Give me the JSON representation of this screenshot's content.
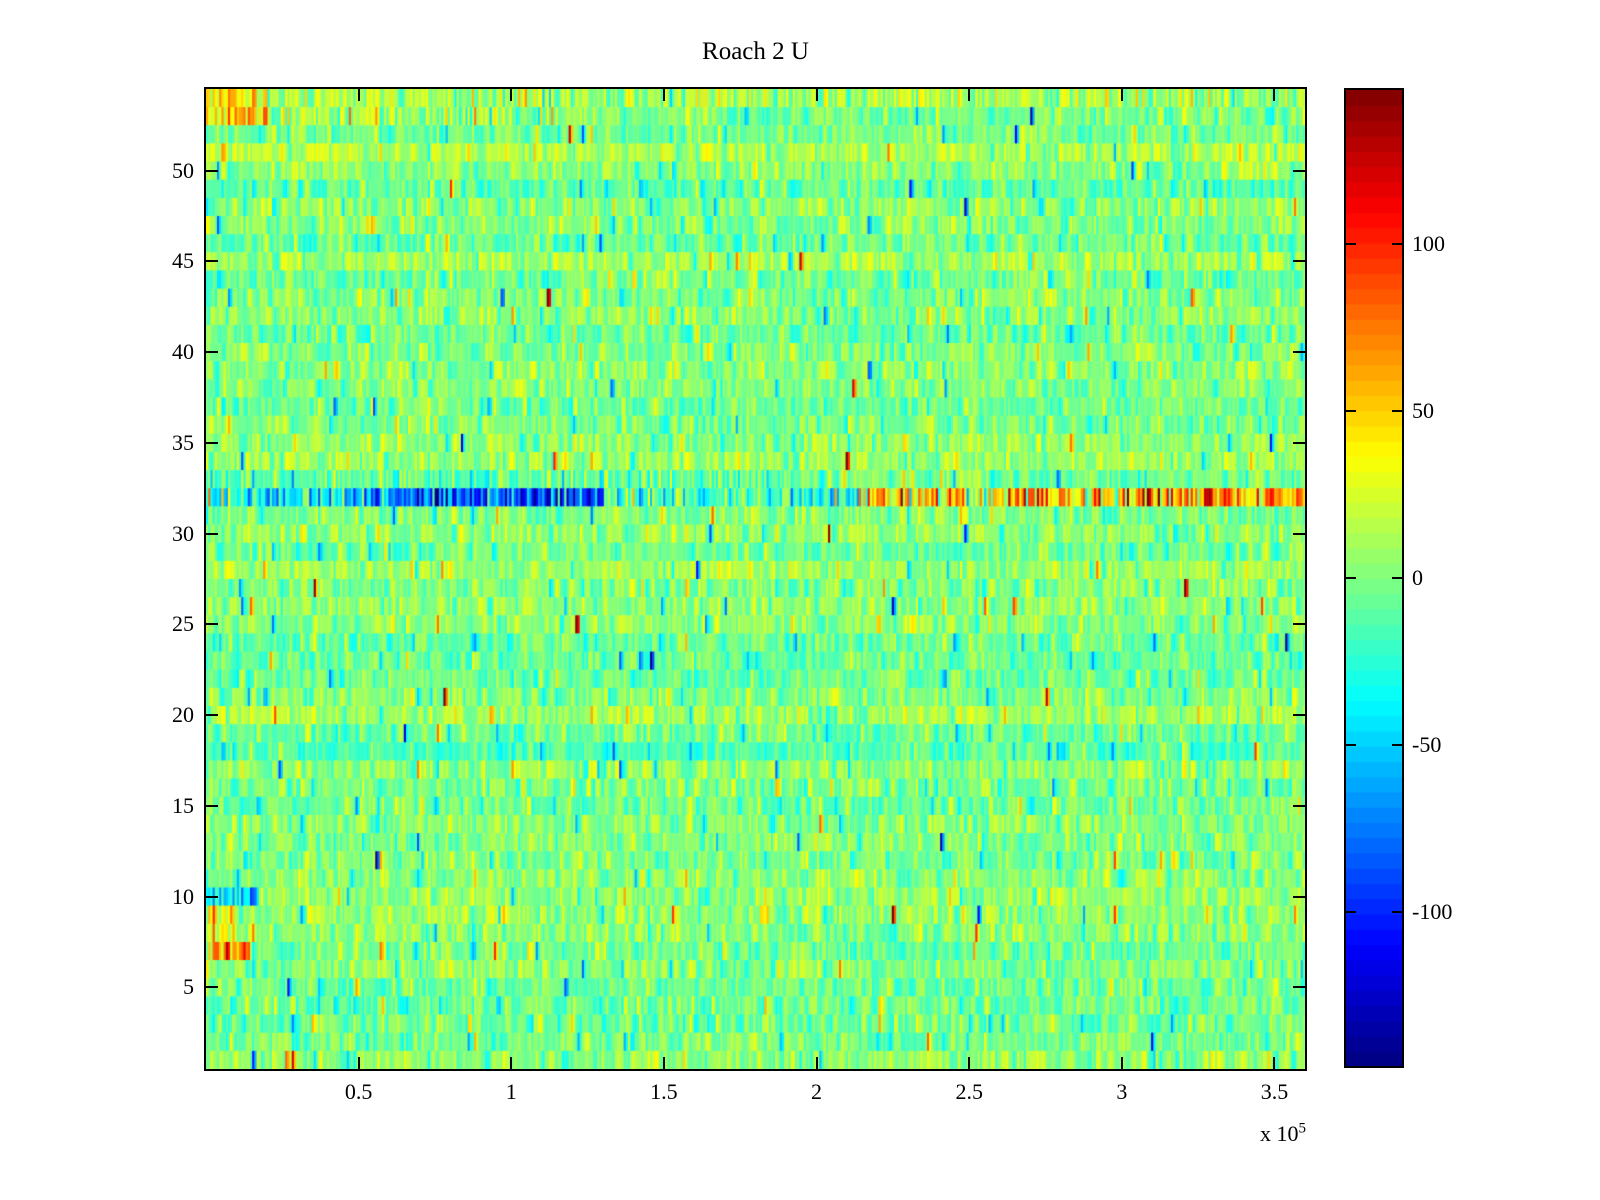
{
  "chart_data": {
    "type": "heatmap",
    "title": "Roach 2 U",
    "x_axis": {
      "tick_values_e5": [
        0.5,
        1,
        1.5,
        2,
        2.5,
        3,
        3.5
      ],
      "tick_labels": [
        "0.5",
        "1",
        "1.5",
        "2",
        "2.5",
        "3",
        "3.5"
      ],
      "xlim_e5": [
        0,
        3.6
      ],
      "exponent_label": {
        "base": "x 10",
        "power": "5"
      }
    },
    "y_axis": {
      "tick_values": [
        5,
        10,
        15,
        20,
        25,
        30,
        35,
        40,
        45,
        50
      ],
      "tick_labels": [
        "5",
        "10",
        "15",
        "20",
        "25",
        "30",
        "35",
        "40",
        "45",
        "50"
      ],
      "rows": 54,
      "ylim": [
        0.5,
        54.5
      ]
    },
    "colorbar": {
      "tick_values": [
        100,
        50,
        0,
        -50,
        -100
      ],
      "tick_labels": [
        "100",
        "50",
        "0",
        "-50",
        "-100"
      ],
      "clim": [
        -146,
        146
      ],
      "colormap": "jet",
      "levels": 64,
      "top_color": "#7f0000",
      "bottom_color": "#00007f",
      "zero_color": "#80ff80"
    },
    "heatmap": {
      "rows": 54,
      "cols": 500,
      "seed": 1337,
      "noise_sigma": 17,
      "heavy_tail_prob": 0.1,
      "heavy_tail_scale": 2.2,
      "extreme_prob": 0.008,
      "extreme_scale": 5,
      "row_bias_sigma": 6,
      "column_smoothing": 0.3,
      "anomalies": [
        {
          "row": 32,
          "x_start_e5": 0.0,
          "x_end_e5": 0.1,
          "bias": -20,
          "sigma": 45
        },
        {
          "row": 32,
          "x_start_e5": 0.1,
          "x_end_e5": 0.62,
          "bias": -45,
          "sigma": 30
        },
        {
          "row": 32,
          "x_start_e5": 0.62,
          "x_end_e5": 1.3,
          "bias": -90,
          "sigma": 35
        },
        {
          "row": 32,
          "x_start_e5": 1.3,
          "x_end_e5": 2.02,
          "bias": -18,
          "sigma": 28
        },
        {
          "row": 32,
          "x_start_e5": 2.02,
          "x_end_e5": 2.14,
          "bias": -25,
          "sigma": 25
        },
        {
          "row": 32,
          "x_start_e5": 2.14,
          "x_end_e5": 2.62,
          "bias": 35,
          "sigma": 35
        },
        {
          "row": 32,
          "x_start_e5": 2.62,
          "x_end_e5": 3.02,
          "bias": 55,
          "sigma": 40
        },
        {
          "row": 32,
          "x_start_e5": 3.02,
          "x_end_e5": 3.6,
          "bias": 75,
          "sigma": 40
        },
        {
          "row": 33,
          "x_start_e5": 0.0,
          "x_end_e5": 1.9,
          "bias": -10,
          "sigma": 20
        },
        {
          "row": 10,
          "x_start_e5": 0.0,
          "x_end_e5": 0.17,
          "bias": -55,
          "sigma": 28
        },
        {
          "row": 9,
          "x_start_e5": 0.0,
          "x_end_e5": 0.1,
          "bias": 40,
          "sigma": 30
        },
        {
          "row": 8,
          "x_start_e5": 0.02,
          "x_end_e5": 0.1,
          "bias": 30,
          "sigma": 25
        },
        {
          "row": 7,
          "x_start_e5": 0.02,
          "x_end_e5": 0.15,
          "bias": 68,
          "sigma": 30
        },
        {
          "row": 54,
          "x_start_e5": 0.0,
          "x_end_e5": 0.2,
          "bias": 35,
          "sigma": 25
        },
        {
          "row": 54,
          "x_start_e5": 0.2,
          "x_end_e5": 3.6,
          "bias": 10,
          "sigma": 20
        },
        {
          "row": 53,
          "x_start_e5": 0.0,
          "x_end_e5": 0.2,
          "bias": 45,
          "sigma": 30
        },
        {
          "row": 53,
          "x_start_e5": 0.2,
          "x_end_e5": 1.15,
          "bias": 12,
          "sigma": 22
        }
      ]
    }
  }
}
